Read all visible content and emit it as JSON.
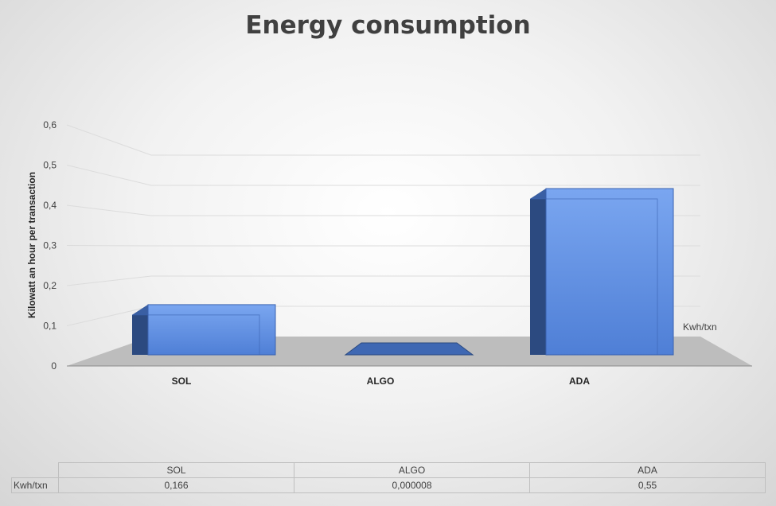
{
  "chart_data": {
    "type": "bar",
    "title": "Energy consumption",
    "ylabel": "Kilowatt an hour per transaction",
    "categories": [
      "SOL",
      "ALGO",
      "ADA"
    ],
    "series": [
      {
        "name": "Kwh/txn",
        "values": [
          0.166,
          8e-06,
          0.55
        ]
      }
    ],
    "value_labels": [
      "0,166",
      "0,000008",
      "0,55"
    ],
    "ylim": [
      0,
      0.6
    ],
    "yticks": [
      "0",
      "0,1",
      "0,2",
      "0,3",
      "0,4",
      "0,5",
      "0,6"
    ],
    "grid": true,
    "style": "3d-column",
    "data_table": true,
    "colors": {
      "bar": "#4472c4"
    }
  }
}
